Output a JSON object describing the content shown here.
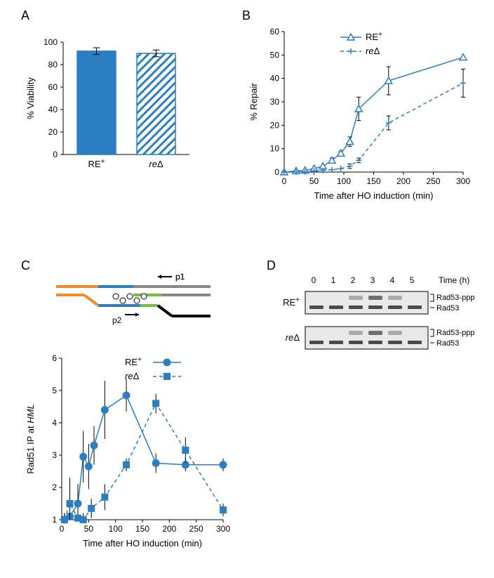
{
  "panelA": {
    "label": "A",
    "ylabel": "% Viability",
    "yticks": [
      0,
      20,
      40,
      60,
      80,
      100
    ],
    "categories": [
      "RE",
      "re"
    ],
    "category_display": [
      "RE+",
      "reΔ"
    ],
    "values": [
      92,
      90
    ],
    "errors": [
      3,
      3
    ],
    "bar_colors": [
      "#2b7ec2",
      "hatched"
    ],
    "bar_fill": "#2b7ec2",
    "background": "#ffffff",
    "axis_color": "#000000",
    "label_fontsize": 12,
    "title_fontsize": 13,
    "ylim": [
      0,
      100
    ]
  },
  "panelB": {
    "label": "B",
    "ylabel": "% Repair",
    "xlabel": "Time after HO induction (min)",
    "yticks": [
      0,
      10,
      20,
      30,
      40,
      50,
      60
    ],
    "xticks": [
      0,
      50,
      100,
      150,
      200,
      250,
      300
    ],
    "ylim": [
      0,
      60
    ],
    "xlim": [
      0,
      300
    ],
    "series": [
      {
        "name": "RE+",
        "legend": "RE+",
        "marker": "triangle",
        "dash": "solid",
        "color": "#2b7ec2",
        "x": [
          0,
          20,
          35,
          50,
          65,
          80,
          95,
          110,
          125,
          175,
          300
        ],
        "y": [
          0,
          0.5,
          0.7,
          1.5,
          2.5,
          5,
          8,
          13,
          27,
          39,
          49
        ],
        "err": [
          0,
          0,
          0,
          0,
          0,
          1,
          1,
          2,
          5,
          6,
          0
        ]
      },
      {
        "name": "reΔ",
        "legend": "reΔ",
        "marker": "plus",
        "dash": "dashed",
        "color": "#2b7ec2",
        "x": [
          0,
          20,
          35,
          50,
          65,
          80,
          95,
          110,
          125,
          175,
          300
        ],
        "y": [
          0,
          0,
          0,
          0.5,
          0.7,
          1,
          1.5,
          2.5,
          5,
          21,
          38
        ],
        "err": [
          0,
          0,
          0,
          0,
          0,
          0,
          0,
          1,
          1,
          3,
          6
        ]
      }
    ],
    "axis_color": "#000000",
    "label_fontsize": 12
  },
  "panelC": {
    "label": "C",
    "schematic": {
      "arrows": [
        "p1",
        "p2"
      ],
      "segment_colors": [
        "#ef8b2a",
        "#2b7ec2",
        "#72c042",
        "#888888",
        "#000000"
      ]
    },
    "chart": {
      "ylabel": "Rad51 IP at HML",
      "xlabel": "Time after HO induction (min)",
      "yticks": [
        1,
        2,
        3,
        4,
        5,
        6
      ],
      "xticks": [
        0,
        50,
        100,
        150,
        200,
        250,
        300
      ],
      "ylim": [
        1,
        6
      ],
      "xlim": [
        0,
        300
      ],
      "series": [
        {
          "name": "RE+",
          "legend": "RE+",
          "marker": "circle",
          "dash": "solid",
          "color": "#2b7ec2",
          "x": [
            5,
            15,
            30,
            40,
            50,
            60,
            80,
            120,
            175,
            230,
            300
          ],
          "y": [
            1.0,
            1.1,
            1.5,
            2.95,
            2.65,
            3.3,
            4.4,
            4.85,
            2.75,
            2.7,
            2.7
          ],
          "err": [
            0.2,
            0.5,
            0.6,
            0.8,
            0.7,
            0.6,
            0.9,
            0.5,
            0.3,
            0.2,
            0.2
          ]
        },
        {
          "name": "reΔ",
          "legend": "reΔ",
          "marker": "square",
          "dash": "dashed",
          "color": "#2b7ec2",
          "x": [
            5,
            15,
            30,
            40,
            55,
            80,
            120,
            175,
            230,
            300
          ],
          "y": [
            1.0,
            1.5,
            1.05,
            1.0,
            1.35,
            1.7,
            2.7,
            4.6,
            3.15,
            1.3
          ],
          "err": [
            0.2,
            0.8,
            0.3,
            0.2,
            0.3,
            0.4,
            0.2,
            0.3,
            0.4,
            0.2
          ]
        }
      ],
      "axis_color": "#000000"
    }
  },
  "panelD": {
    "label": "D",
    "time_header": "Time (h)",
    "timepoints": [
      "0",
      "1",
      "2",
      "3",
      "4",
      "5"
    ],
    "rows": [
      "RE+",
      "reΔ"
    ],
    "band_labels_top": "Rad53-ppp",
    "band_labels_bottom": "Rad53",
    "gel_border": "#000000",
    "gel_band_color": "#3a3a3a",
    "gel_bg": "#e9e9e9"
  },
  "labels": {
    "RE_plus": "RE",
    "RE_plus_sup": "+",
    "re_delta": "re",
    "re_delta_sym": "Δ"
  }
}
